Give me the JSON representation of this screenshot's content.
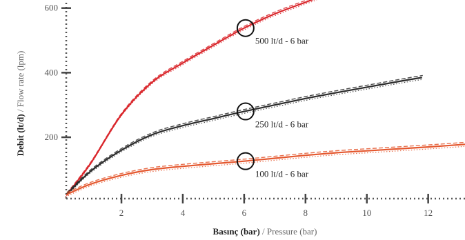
{
  "chart_data": {
    "type": "line",
    "title": "",
    "xlabel": {
      "main": "Basınç (bar)",
      "secondary": " / Pressure (bar)"
    },
    "ylabel": {
      "main": "Debit (lt/d)",
      "secondary": " / Flow rate (lpm)"
    },
    "xlim": [
      0.2,
      13.2
    ],
    "ylim": [
      10,
      625
    ],
    "x_ticks": [
      2,
      4,
      6,
      8,
      10,
      12
    ],
    "y_ticks": [
      200,
      400,
      600
    ],
    "grid": false,
    "series": [
      {
        "color": "#d9262b",
        "points": [
          [
            0.2,
            20
          ],
          [
            1,
            120
          ],
          [
            2,
            270
          ],
          [
            3,
            370
          ],
          [
            4,
            430
          ],
          [
            5,
            485
          ],
          [
            6,
            538
          ],
          [
            7,
            582
          ],
          [
            8,
            618
          ],
          [
            8.6,
            640
          ]
        ]
      },
      {
        "color": "#2b2b2b",
        "points": [
          [
            0.2,
            22
          ],
          [
            1,
            95
          ],
          [
            2,
            160
          ],
          [
            3,
            208
          ],
          [
            4,
            236
          ],
          [
            5,
            258
          ],
          [
            6,
            280
          ],
          [
            7,
            300
          ],
          [
            8,
            320
          ],
          [
            9,
            338
          ],
          [
            10,
            355
          ],
          [
            11,
            372
          ],
          [
            11.8,
            385
          ]
        ]
      },
      {
        "color": "#e4572e",
        "points": [
          [
            0.2,
            22
          ],
          [
            1,
            55
          ],
          [
            2,
            82
          ],
          [
            3,
            100
          ],
          [
            4,
            110
          ],
          [
            5,
            118
          ],
          [
            6,
            126
          ],
          [
            7,
            135
          ],
          [
            8,
            144
          ],
          [
            9,
            152
          ],
          [
            10,
            158
          ],
          [
            11,
            164
          ],
          [
            12,
            170
          ],
          [
            13.2,
            178
          ]
        ]
      }
    ],
    "annotations": [
      {
        "x": 6,
        "y": 538,
        "label": "500 lt/d - 6 bar"
      },
      {
        "x": 6,
        "y": 280,
        "label": "250 lt/d - 6 bar"
      },
      {
        "x": 6,
        "y": 126,
        "label": "100 lt/d - 6 bar"
      }
    ]
  }
}
